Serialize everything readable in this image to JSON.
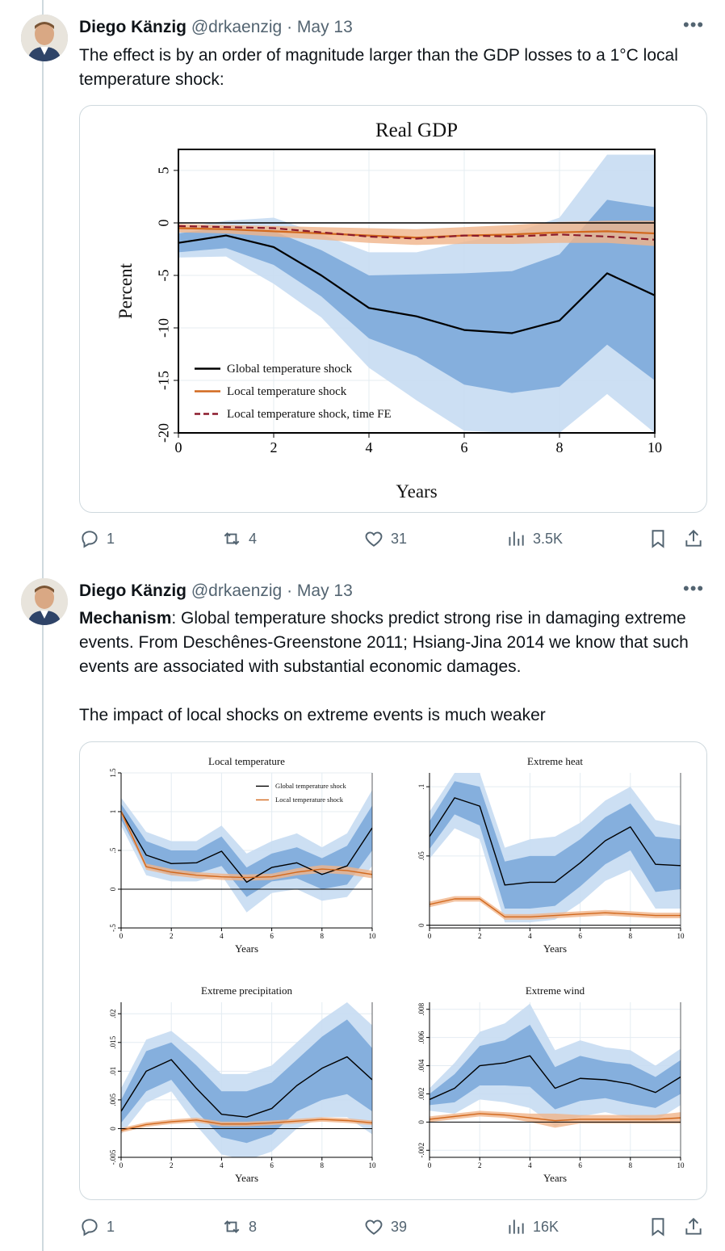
{
  "tweets": [
    {
      "author": "Diego Känzig",
      "handle": "@drkaenzig",
      "date": "· May 13",
      "text": "The effect is by an order of magnitude larger than the GDP losses to a 1°C local temperature shock:",
      "stats": {
        "replies": "1",
        "reposts": "4",
        "likes": "31",
        "views": "3.5K"
      }
    },
    {
      "author": "Diego Känzig",
      "handle": "@drkaenzig",
      "date": "· May 13",
      "text_bold": "Mechanism",
      "text_rest": ": Global temperature shocks predict strong rise in damaging extreme events. From Deschênes-Greenstone 2011; Hsiang-Jina 2014 we know that such events are associated with substantial economic damages.",
      "text_2": "The impact of local shocks on extreme events is much weaker",
      "stats": {
        "replies": "1",
        "reposts": "8",
        "likes": "39",
        "views": "16K"
      }
    }
  ],
  "icons": [
    "avatar",
    "more-icon",
    "reply-icon",
    "repost-icon",
    "like-icon",
    "views-icon",
    "bookmark-icon",
    "share-icon"
  ],
  "colors": {
    "global": "#000000",
    "local": "#d2691e",
    "local_fe": "#8b1a2b",
    "band_inner": "#6d9fd6",
    "band_outer": "#c7dcf2",
    "local_band": "#f0b48a"
  },
  "chart_data": [
    {
      "type": "line",
      "title": "Real GDP",
      "xlabel": "Years",
      "ylabel": "Percent",
      "xlim": [
        0,
        10
      ],
      "ylim": [
        -20,
        7
      ],
      "xticks": [
        "0",
        "2",
        "4",
        "6",
        "8",
        "10"
      ],
      "yticks": [
        "5",
        "0",
        "-5",
        "-10",
        "-15",
        "-20"
      ],
      "x": [
        0,
        1,
        2,
        3,
        4,
        5,
        6,
        7,
        8,
        9,
        10
      ],
      "series": [
        {
          "name": "Global temperature shock",
          "color": "#000000",
          "values": [
            -1.9,
            -1.2,
            -2.3,
            -5.0,
            -8.1,
            -8.9,
            -10.2,
            -10.5,
            -9.3,
            -4.8,
            -6.9
          ],
          "band68": [
            [
              -2.8,
              -1.0
            ],
            [
              -2.4,
              -0.4
            ],
            [
              -4.0,
              -0.8
            ],
            [
              -7.0,
              -2.6
            ],
            [
              -11.0,
              -5.0
            ],
            [
              -12.7,
              -4.9
            ],
            [
              -15.4,
              -4.8
            ],
            [
              -16.2,
              -4.6
            ],
            [
              -15.6,
              -3.0
            ],
            [
              -11.6,
              2.2
            ],
            [
              -15.0,
              1.5
            ]
          ],
          "band90": [
            [
              -3.3,
              -0.5
            ],
            [
              -3.2,
              0.2
            ],
            [
              -5.8,
              0.5
            ],
            [
              -9.0,
              -1.1
            ],
            [
              -13.8,
              -2.8
            ],
            [
              -16.9,
              -2.8
            ],
            [
              -19.8,
              -1.8
            ],
            [
              -20.0,
              -1.0
            ],
            [
              -20.0,
              0.5
            ],
            [
              -16.3,
              6.5
            ],
            [
              -20.0,
              6.5
            ]
          ]
        },
        {
          "name": "Local temperature shock",
          "color": "#d2691e",
          "values": [
            -0.5,
            -0.6,
            -0.8,
            -1.0,
            -1.2,
            -1.4,
            -1.2,
            -1.1,
            -0.9,
            -0.8,
            -1.0
          ],
          "band68": [
            [
              -0.9,
              -0.1
            ],
            [
              -1.0,
              -0.2
            ],
            [
              -1.3,
              -0.3
            ],
            [
              -1.6,
              -0.4
            ],
            [
              -1.9,
              -0.5
            ],
            [
              -2.1,
              -0.6
            ],
            [
              -2.0,
              -0.4
            ],
            [
              -2.0,
              -0.2
            ],
            [
              -1.9,
              0.1
            ],
            [
              -1.9,
              0.2
            ],
            [
              -2.2,
              0.2
            ]
          ]
        },
        {
          "name": "Local temperature shock, time FE",
          "color": "#8b1a2b",
          "dashed": true,
          "values": [
            -0.3,
            -0.4,
            -0.5,
            -0.9,
            -1.3,
            -1.5,
            -1.2,
            -1.3,
            -1.1,
            -1.3,
            -1.6
          ]
        }
      ]
    },
    {
      "type": "line",
      "title": "Local temperature",
      "xlabel": "Years",
      "xlim": [
        0,
        10
      ],
      "ylim": [
        -0.5,
        1.5
      ],
      "xticks": [
        "0",
        "2",
        "4",
        "6",
        "8",
        "10"
      ],
      "yticks": [
        "1.5",
        "1",
        ".5",
        "0",
        "-.5"
      ],
      "x": [
        0,
        1,
        2,
        3,
        4,
        5,
        6,
        7,
        8,
        9,
        10
      ],
      "series": [
        {
          "name": "Global temperature shock",
          "color": "#000000",
          "values": [
            1.0,
            0.44,
            0.33,
            0.34,
            0.49,
            0.09,
            0.28,
            0.34,
            0.19,
            0.3,
            0.79
          ],
          "band68": [
            [
              0.9,
              1.1
            ],
            [
              0.28,
              0.62
            ],
            [
              0.18,
              0.5
            ],
            [
              0.2,
              0.5
            ],
            [
              0.3,
              0.68
            ],
            [
              -0.1,
              0.28
            ],
            [
              0.1,
              0.46
            ],
            [
              0.14,
              0.54
            ],
            [
              0.0,
              0.4
            ],
            [
              0.06,
              0.56
            ],
            [
              0.5,
              1.08
            ]
          ],
          "band90": [
            [
              0.82,
              1.18
            ],
            [
              0.18,
              0.74
            ],
            [
              0.1,
              0.62
            ],
            [
              0.1,
              0.62
            ],
            [
              0.18,
              0.82
            ],
            [
              -0.3,
              0.46
            ],
            [
              -0.05,
              0.62
            ],
            [
              0.0,
              0.72
            ],
            [
              -0.15,
              0.54
            ],
            [
              -0.1,
              0.72
            ],
            [
              0.3,
              1.28
            ]
          ]
        },
        {
          "name": "Local temperature shock",
          "color": "#d2691e",
          "values": [
            1.0,
            0.29,
            0.22,
            0.18,
            0.16,
            0.15,
            0.16,
            0.22,
            0.26,
            0.24,
            0.19
          ],
          "band68": [
            [
              0.96,
              1.04
            ],
            [
              0.25,
              0.33
            ],
            [
              0.18,
              0.26
            ],
            [
              0.14,
              0.22
            ],
            [
              0.12,
              0.2
            ],
            [
              0.11,
              0.19
            ],
            [
              0.12,
              0.2
            ],
            [
              0.18,
              0.27
            ],
            [
              0.21,
              0.31
            ],
            [
              0.19,
              0.29
            ],
            [
              0.14,
              0.24
            ]
          ]
        }
      ]
    },
    {
      "type": "line",
      "title": "Extreme heat",
      "xlabel": "Years",
      "xlim": [
        0,
        10
      ],
      "ylim": [
        -0.002,
        0.11
      ],
      "xticks": [
        "0",
        "2",
        "4",
        "6",
        "8",
        "10"
      ],
      "yticks": [
        ".1",
        ".05",
        "0"
      ],
      "x": [
        0,
        1,
        2,
        3,
        4,
        5,
        6,
        7,
        8,
        9,
        10
      ],
      "series": [
        {
          "name": "Global temperature shock",
          "color": "#000000",
          "values": [
            0.064,
            0.092,
            0.086,
            0.029,
            0.031,
            0.031,
            0.045,
            0.061,
            0.071,
            0.044,
            0.043
          ],
          "band68": [
            [
              0.055,
              0.075
            ],
            [
              0.08,
              0.104
            ],
            [
              0.072,
              0.1
            ],
            [
              0.012,
              0.046
            ],
            [
              0.012,
              0.05
            ],
            [
              0.014,
              0.05
            ],
            [
              0.028,
              0.062
            ],
            [
              0.044,
              0.078
            ],
            [
              0.054,
              0.088
            ],
            [
              0.024,
              0.064
            ],
            [
              0.026,
              0.062
            ]
          ],
          "band90": [
            [
              0.048,
              0.082
            ],
            [
              0.07,
              0.11
            ],
            [
              0.062,
              0.11
            ],
            [
              0.002,
              0.056
            ],
            [
              0.002,
              0.062
            ],
            [
              0.004,
              0.064
            ],
            [
              0.016,
              0.074
            ],
            [
              0.032,
              0.09
            ],
            [
              0.04,
              0.1
            ],
            [
              0.012,
              0.076
            ],
            [
              0.012,
              0.072
            ]
          ]
        },
        {
          "name": "Local temperature shock",
          "color": "#d2691e",
          "values": [
            0.015,
            0.019,
            0.019,
            0.006,
            0.006,
            0.007,
            0.008,
            0.009,
            0.008,
            0.007,
            0.007
          ],
          "band68": [
            [
              0.013,
              0.017
            ],
            [
              0.017,
              0.021
            ],
            [
              0.017,
              0.021
            ],
            [
              0.004,
              0.008
            ],
            [
              0.004,
              0.008
            ],
            [
              0.005,
              0.009
            ],
            [
              0.006,
              0.01
            ],
            [
              0.007,
              0.011
            ],
            [
              0.006,
              0.01
            ],
            [
              0.005,
              0.009
            ],
            [
              0.005,
              0.009
            ]
          ]
        }
      ]
    },
    {
      "type": "line",
      "title": "Extreme precipitation",
      "xlabel": "Years",
      "xlim": [
        0,
        10
      ],
      "ylim": [
        -0.005,
        0.022
      ],
      "xticks": [
        "0",
        "2",
        "4",
        "6",
        "8",
        "10"
      ],
      "yticks": [
        ".02",
        ".015",
        ".01",
        ".005",
        "0",
        "-.005"
      ],
      "x": [
        0,
        1,
        2,
        3,
        4,
        5,
        6,
        7,
        8,
        9,
        10
      ],
      "series": [
        {
          "name": "Global temperature shock",
          "color": "#000000",
          "values": [
            0.003,
            0.01,
            0.012,
            0.007,
            0.0025,
            0.002,
            0.0035,
            0.0075,
            0.0105,
            0.0125,
            0.0085
          ],
          "band68": [
            [
              0.001,
              0.005
            ],
            [
              0.0065,
              0.0135
            ],
            [
              0.0085,
              0.015
            ],
            [
              0.003,
              0.011
            ],
            [
              -0.0015,
              0.0065
            ],
            [
              -0.0025,
              0.0065
            ],
            [
              -0.001,
              0.008
            ],
            [
              0.003,
              0.012
            ],
            [
              0.005,
              0.016
            ],
            [
              0.006,
              0.019
            ],
            [
              0.003,
              0.014
            ]
          ],
          "band90": [
            [
              -0.001,
              0.007
            ],
            [
              0.0045,
              0.0155
            ],
            [
              0.0065,
              0.017
            ],
            [
              0.0005,
              0.0135
            ],
            [
              -0.0045,
              0.0095
            ],
            [
              -0.0055,
              0.0095
            ],
            [
              -0.004,
              0.011
            ],
            [
              0.0,
              0.015
            ],
            [
              0.002,
              0.019
            ],
            [
              0.002,
              0.022
            ],
            [
              -0.001,
              0.018
            ]
          ]
        },
        {
          "name": "Local temperature shock",
          "color": "#d2691e",
          "values": [
            -0.0003,
            0.0007,
            0.0012,
            0.0015,
            0.0008,
            0.0008,
            0.001,
            0.0013,
            0.0016,
            0.0014,
            0.001
          ],
          "band68": [
            [
              -0.0007,
              0.0001
            ],
            [
              0.0003,
              0.0011
            ],
            [
              0.0008,
              0.0016
            ],
            [
              0.0011,
              0.0019
            ],
            [
              0.0004,
              0.0012
            ],
            [
              0.0004,
              0.0012
            ],
            [
              0.0006,
              0.0014
            ],
            [
              0.0009,
              0.0017
            ],
            [
              0.0012,
              0.002
            ],
            [
              0.001,
              0.0018
            ],
            [
              0.0006,
              0.0014
            ]
          ]
        }
      ]
    },
    {
      "type": "line",
      "title": "Extreme wind",
      "xlabel": "Years",
      "xlim": [
        0,
        10
      ],
      "ylim": [
        -0.0025,
        0.0085
      ],
      "xticks": [
        "0",
        "2",
        "4",
        "6",
        "8",
        "10"
      ],
      "yticks": [
        ".008",
        ".006",
        ".004",
        ".002",
        "0",
        "-.002"
      ],
      "x": [
        0,
        1,
        2,
        3,
        4,
        5,
        6,
        7,
        8,
        9,
        10
      ],
      "series": [
        {
          "name": "Global temperature shock",
          "color": "#000000",
          "values": [
            0.0016,
            0.0024,
            0.004,
            0.0042,
            0.0047,
            0.0024,
            0.0031,
            0.003,
            0.0027,
            0.0021,
            0.0032
          ],
          "band68": [
            [
              0.0012,
              0.002
            ],
            [
              0.0014,
              0.0034
            ],
            [
              0.0026,
              0.0054
            ],
            [
              0.0026,
              0.0058
            ],
            [
              0.0025,
              0.0069
            ],
            [
              0.0009,
              0.0039
            ],
            [
              0.0015,
              0.0047
            ],
            [
              0.0017,
              0.0043
            ],
            [
              0.0013,
              0.0041
            ],
            [
              0.001,
              0.0032
            ],
            [
              0.002,
              0.0044
            ]
          ],
          "band90": [
            [
              0.0008,
              0.0024
            ],
            [
              0.0006,
              0.0042
            ],
            [
              0.0016,
              0.0064
            ],
            [
              0.0014,
              0.007
            ],
            [
              0.001,
              0.0084
            ],
            [
              -0.0003,
              0.0051
            ],
            [
              0.0004,
              0.0058
            ],
            [
              0.0007,
              0.0053
            ],
            [
              0.0003,
              0.0051
            ],
            [
              0.0001,
              0.004
            ],
            [
              0.0012,
              0.0052
            ]
          ]
        },
        {
          "name": "Local temperature shock",
          "color": "#d2691e",
          "values": [
            0.0002,
            0.0004,
            0.0006,
            0.0005,
            0.0003,
            0.0001,
            0.0002,
            0.0002,
            0.0002,
            0.0002,
            0.0003
          ],
          "band68": [
            [
              0.0,
              0.0004
            ],
            [
              0.0002,
              0.0006
            ],
            [
              0.0004,
              0.0008
            ],
            [
              0.0003,
              0.0007
            ],
            [
              0.0,
              0.0006
            ],
            [
              -0.0004,
              0.0006
            ],
            [
              -0.0001,
              0.0005
            ],
            [
              -0.0001,
              0.0005
            ],
            [
              -0.0001,
              0.0005
            ],
            [
              -0.0001,
              0.0005
            ],
            [
              -0.0001,
              0.0007
            ]
          ]
        }
      ]
    }
  ]
}
